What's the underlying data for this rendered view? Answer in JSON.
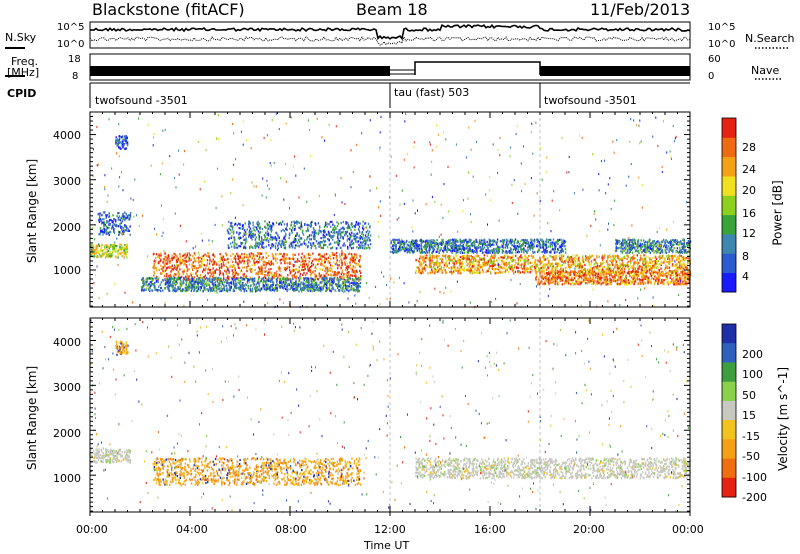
{
  "header": {
    "site": "Blackstone (fitACF)",
    "beam": "Beam 18",
    "date": "11/Feb/2013"
  },
  "top_panels": {
    "nsky_label": "N.Sky",
    "nsearch_label": "N.Search",
    "noise_tick_top": "10^5",
    "noise_tick_bottom": "10^0",
    "freq_label_1": "Freq.",
    "freq_label_2": "[MHz]",
    "freq_tick_top": "18",
    "freq_tick_bottom": "8",
    "nave_label": "Nave",
    "nave_tick_top": "60",
    "nave_tick_bottom": "0",
    "cpid_label": "CPID",
    "modes": [
      {
        "label": "twofsound -3501",
        "start_hour": 0
      },
      {
        "label": "tau (fast) 503",
        "start_hour": 12
      },
      {
        "label": "twofsound -3501",
        "start_hour": 18
      }
    ]
  },
  "chart_data": [
    {
      "type": "heatmap",
      "name": "power-panel",
      "ylabel": "Slant Range [km]",
      "xlim": [
        0,
        24
      ],
      "ylim": [
        180,
        4500
      ],
      "yticks": [
        1000,
        2000,
        3000,
        4000
      ],
      "colorbar": {
        "label": "Power [dB]",
        "ticks": [
          "4",
          "8",
          "12",
          "16",
          "20",
          "24",
          "28"
        ],
        "range": [
          0,
          30
        ],
        "colors": [
          "#1a1aff",
          "#2a5ccf",
          "#3d86b0",
          "#38a338",
          "#8fd01e",
          "#f0e020",
          "#f2a214",
          "#ef6a10",
          "#e62210"
        ]
      },
      "scatter_bands": [
        {
          "t0": 0.0,
          "t1": 1.5,
          "r0": 1300,
          "r1": 1600,
          "level": 0.55
        },
        {
          "t0": 0.3,
          "t1": 1.6,
          "r0": 1800,
          "r1": 2300,
          "level": 0.15
        },
        {
          "t0": 1.0,
          "t1": 1.5,
          "r0": 3700,
          "r1": 4000,
          "level": 0.1
        },
        {
          "t0": 2.5,
          "t1": 10.8,
          "r0": 800,
          "r1": 1400,
          "level": 0.9
        },
        {
          "t0": 2.0,
          "t1": 10.8,
          "r0": 550,
          "r1": 850,
          "level": 0.25
        },
        {
          "t0": 5.5,
          "t1": 11.2,
          "r0": 1500,
          "r1": 2100,
          "level": 0.2
        },
        {
          "t0": 13.0,
          "t1": 24.0,
          "r0": 950,
          "r1": 1350,
          "level": 0.75
        },
        {
          "t0": 17.8,
          "t1": 24.0,
          "r0": 700,
          "r1": 1000,
          "level": 0.85
        },
        {
          "t0": 12.0,
          "t1": 19.0,
          "r0": 1400,
          "r1": 1700,
          "level": 0.2
        },
        {
          "t0": 21.0,
          "t1": 24.0,
          "r0": 1400,
          "r1": 1700,
          "level": 0.25
        }
      ]
    },
    {
      "type": "heatmap",
      "name": "velocity-panel",
      "ylabel": "Slant Range [km]",
      "xlabel": "Time UT",
      "xlim": [
        0,
        24
      ],
      "ylim": [
        180,
        4500
      ],
      "xticks": [
        "00:00",
        "04:00",
        "08:00",
        "12:00",
        "16:00",
        "20:00",
        "00:00"
      ],
      "yticks": [
        1000,
        2000,
        3000,
        4000
      ],
      "colorbar": {
        "label": "Velocity [m s^-1]",
        "ticks": [
          "200",
          "100",
          "50",
          "15",
          "-15",
          "-50",
          "-100",
          "-200"
        ],
        "colors": [
          "#1e2fa8",
          "#2f5fbf",
          "#3e9e3e",
          "#8ad04a",
          "#c8c8c0",
          "#f2c21e",
          "#f3a014",
          "#ef6e10",
          "#e62210"
        ]
      },
      "scatter_bands": [
        {
          "t0": 0.0,
          "t1": 1.6,
          "r0": 1300,
          "r1": 1600,
          "level": "ground"
        },
        {
          "t0": 2.5,
          "t1": 10.8,
          "r0": 800,
          "r1": 1400,
          "level": "negative"
        },
        {
          "t0": 13.0,
          "t1": 24.0,
          "r0": 950,
          "r1": 1400,
          "level": "ground"
        },
        {
          "t0": 1.0,
          "t1": 1.5,
          "r0": 3700,
          "r1": 4000,
          "level": "negative"
        }
      ]
    }
  ]
}
